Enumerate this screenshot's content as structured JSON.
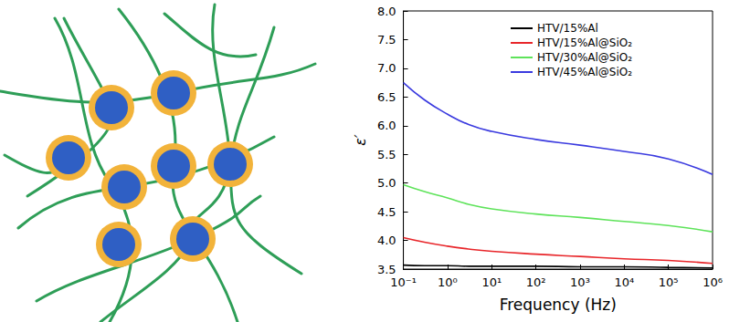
{
  "chart_data": {
    "type": "line",
    "x_label": "Frequency (Hz)",
    "y_label": "ε′",
    "log": "x",
    "grid": false,
    "legend": "upper left",
    "xlim": [
      0.1,
      1000000
    ],
    "xticks": [
      {
        "value": 0.1,
        "label": "10⁻¹"
      },
      {
        "value": 1,
        "label": "10⁰"
      },
      {
        "value": 10,
        "label": "10¹"
      },
      {
        "value": 100,
        "label": "10²"
      },
      {
        "value": 1000,
        "label": "10³"
      },
      {
        "value": 10000,
        "label": "10⁴"
      },
      {
        "value": 100000,
        "label": "10⁵"
      },
      {
        "value": 1000000,
        "label": "10⁶"
      }
    ],
    "ylim": [
      3.5,
      8.0
    ],
    "yticks": [
      3.5,
      {
        "value": 4,
        "label": "4.0"
      },
      4.5,
      {
        "value": 5,
        "label": "5.0"
      },
      5.5,
      {
        "value": 6,
        "label": "6.0"
      },
      6.5,
      {
        "value": 7,
        "label": "7.0"
      },
      7.5,
      {
        "value": 8,
        "label": "8.0"
      }
    ],
    "x": [
      0.1,
      0.3,
      1,
      3,
      10,
      100,
      1000,
      10000,
      100000,
      1000000
    ],
    "series": [
      {
        "name": "HTV/15%Al",
        "color": "#000000",
        "values": [
          3.57,
          3.56,
          3.56,
          3.55,
          3.55,
          3.55,
          3.54,
          3.54,
          3.53,
          3.52
        ]
      },
      {
        "name": "HTV/15%Al@SiO₂",
        "color": "#e8262a",
        "values": [
          4.05,
          3.97,
          3.9,
          3.85,
          3.81,
          3.76,
          3.72,
          3.68,
          3.65,
          3.6
        ]
      },
      {
        "name": "HTV/30%Al@SiO₂",
        "color": "#5ee35a",
        "values": [
          4.97,
          4.85,
          4.74,
          4.63,
          4.55,
          4.46,
          4.4,
          4.33,
          4.26,
          4.15
        ]
      },
      {
        "name": "HTV/45%Al@SiO₂",
        "color": "#3a3adf",
        "values": [
          6.75,
          6.45,
          6.2,
          6.02,
          5.9,
          5.76,
          5.66,
          5.55,
          5.42,
          5.15
        ]
      }
    ]
  }
}
